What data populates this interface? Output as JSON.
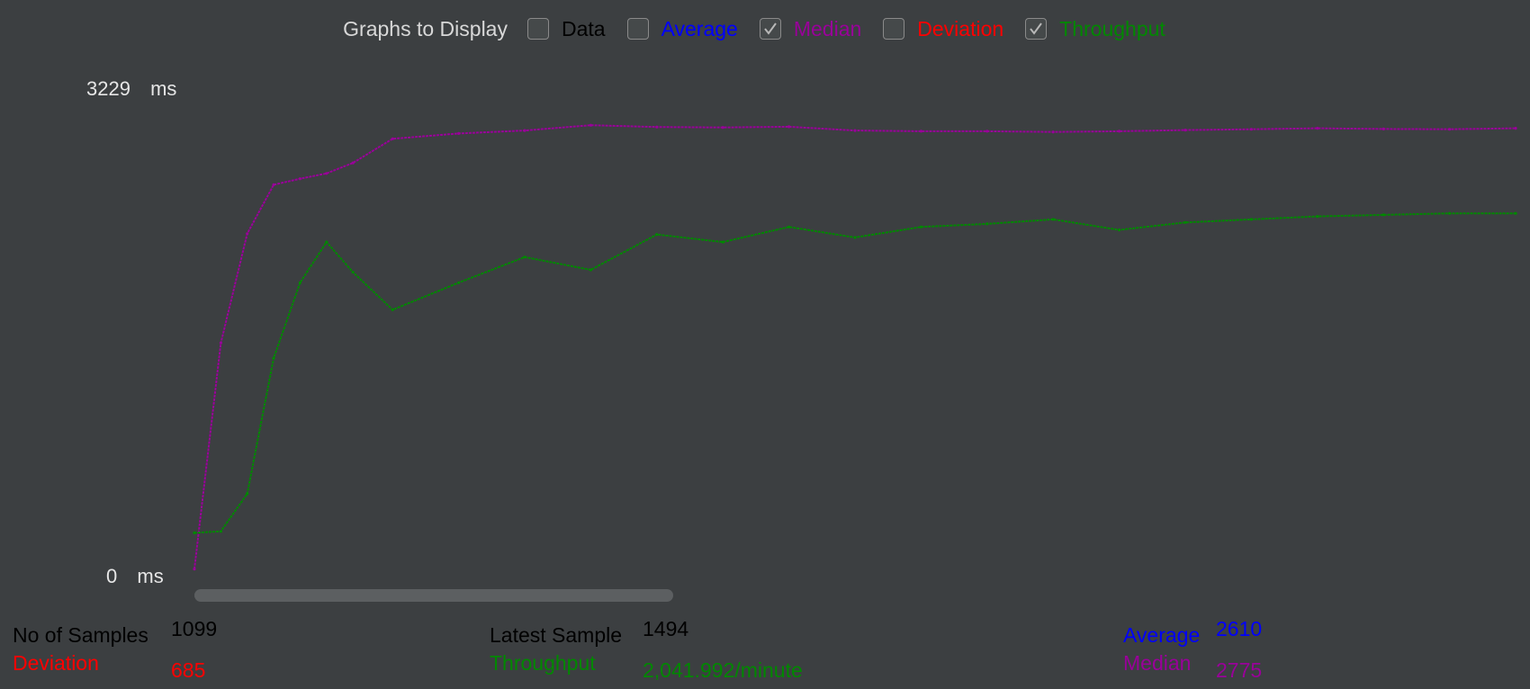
{
  "graph_options": {
    "title": "Graphs to Display",
    "items": [
      {
        "label": "Data",
        "checked": false,
        "color": "#000000"
      },
      {
        "label": "Average",
        "checked": false,
        "color": "#0000ff"
      },
      {
        "label": "Median",
        "checked": true,
        "color": "#990099"
      },
      {
        "label": "Deviation",
        "checked": false,
        "color": "#ff0000"
      },
      {
        "label": "Throughput",
        "checked": true,
        "color": "#008800"
      }
    ]
  },
  "axis": {
    "max_value": "3229",
    "max_unit": "ms",
    "min_value": "0",
    "min_unit": "ms"
  },
  "stats": {
    "samples_label": "No of Samples",
    "samples_value": "1099",
    "latest_label": "Latest Sample",
    "latest_value": "1494",
    "average_label": "Average",
    "average_value": "2610",
    "deviation_label": "Deviation",
    "deviation_value": "685",
    "throughput_label": "Throughput",
    "throughput_value": "2,041.992/minute",
    "median_label": "Median",
    "median_value": "2775"
  },
  "chart_data": {
    "type": "scatter",
    "ylim": [
      0,
      3229
    ],
    "yunit": "ms",
    "x": [
      0,
      2,
      4,
      6,
      8,
      10,
      12,
      15,
      20,
      25,
      30,
      35,
      40,
      45,
      50,
      55,
      60,
      65,
      70,
      75,
      80,
      85,
      90,
      95,
      100
    ],
    "series": [
      {
        "name": "Median",
        "color": "#990099",
        "values": [
          50,
          1550,
          2275,
          2600,
          2640,
          2675,
          2745,
          2905,
          2940,
          2960,
          2995,
          2983,
          2980,
          2985,
          2960,
          2955,
          2955,
          2950,
          2955,
          2963,
          2968,
          2975,
          2970,
          2968,
          2975
        ]
      },
      {
        "name": "Throughput",
        "color": "#008800",
        "values": [
          290,
          300,
          550,
          1450,
          1950,
          2220,
          2020,
          1770,
          1950,
          2120,
          2035,
          2270,
          2220,
          2320,
          2250,
          2320,
          2340,
          2370,
          2300,
          2350,
          2370,
          2390,
          2400,
          2410,
          2410
        ]
      }
    ]
  }
}
